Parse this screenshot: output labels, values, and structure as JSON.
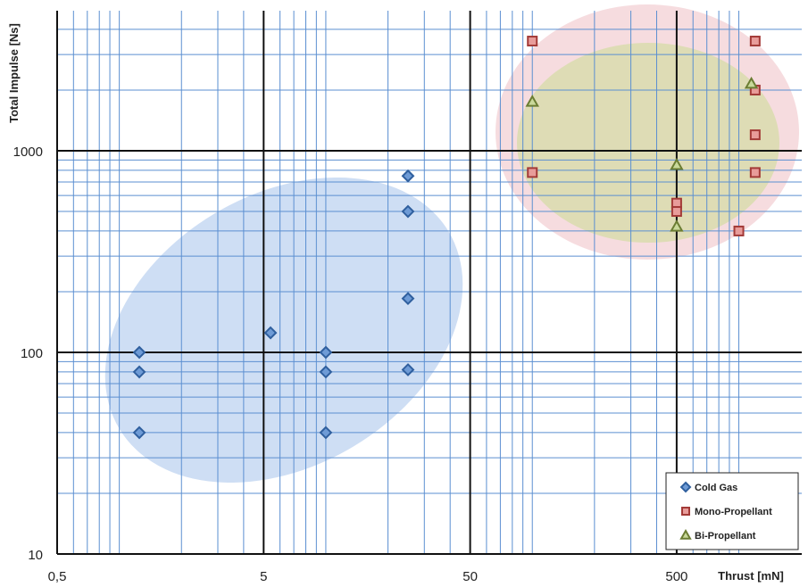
{
  "chart_data": {
    "type": "scatter",
    "xlabel": "Thrust [mN]",
    "ylabel": "Total Impulse [Ns]",
    "x_scale": "log",
    "y_scale": "log",
    "xlim": [
      0.5,
      1500
    ],
    "ylim": [
      10,
      5000
    ],
    "x_ticks": [
      0.5,
      5,
      50,
      500
    ],
    "x_tick_labels": [
      "0,5",
      "5",
      "50",
      "500"
    ],
    "y_ticks": [
      10,
      100,
      1000
    ],
    "y_tick_labels": [
      "10",
      "100",
      "1000"
    ],
    "grid": true,
    "legend_position": "bottom-right",
    "series": [
      {
        "name": "Cold Gas",
        "marker": "diamond",
        "color": "#4a7ec2",
        "points": [
          [
            1.25,
            100
          ],
          [
            1.25,
            80
          ],
          [
            1.25,
            40
          ],
          [
            5.4,
            125
          ],
          [
            10,
            100
          ],
          [
            10,
            80
          ],
          [
            10,
            40
          ],
          [
            25,
            750
          ],
          [
            25,
            500
          ],
          [
            25,
            185
          ],
          [
            25,
            82
          ]
        ]
      },
      {
        "name": "Mono-Propellant",
        "marker": "square",
        "color": "#c0504d",
        "points": [
          [
            100,
            3500
          ],
          [
            100,
            780
          ],
          [
            500,
            550
          ],
          [
            500,
            500
          ],
          [
            1000,
            400
          ],
          [
            1200,
            3500
          ],
          [
            1200,
            2000
          ],
          [
            1200,
            1200
          ],
          [
            1200,
            780
          ]
        ]
      },
      {
        "name": "Bi-Propellant",
        "marker": "triangle",
        "color": "#9bbb59",
        "points": [
          [
            100,
            1750
          ],
          [
            500,
            850
          ],
          [
            500,
            420
          ],
          [
            1150,
            2150
          ]
        ]
      }
    ],
    "regions": [
      {
        "series": "Cold Gas",
        "color": "#c5d8f2"
      },
      {
        "series": "Mono-Propellant",
        "color": "#f5d6d9"
      },
      {
        "series": "Bi-Propellant",
        "color": "#d9dcae"
      }
    ]
  }
}
